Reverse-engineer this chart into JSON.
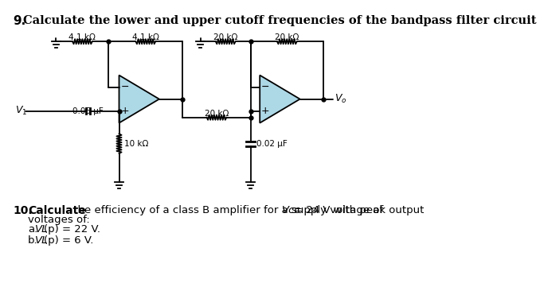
{
  "bg_color": "#ffffff",
  "op_amp_color": "#add8e6",
  "title": "9.  Calculate the lower and upper cutoff frequencies of the bandpass filter circuit",
  "s1_r1_label": "4.1 kΩ",
  "s1_r2_label": "4.1 kΩ",
  "s2_r3_label": "20 kΩ",
  "s2_r4_label": "20 kΩ",
  "r_mid_label": "20 kΩ",
  "s1_cap_label": "0.05 μF",
  "s1_res_label": "10 kΩ",
  "s2_cap_label": "0.02 μF",
  "vo_label": "Vₒ",
  "v1_label": "V₁",
  "p10_num": "10.",
  "p10_bold": "Calculate",
  "p10_rest": " the efficiency of a class B amplifier for a supply voltage of ",
  "p10_italic": "Vcc",
  "p10_end": "= 24 V with peak output",
  "p10_line2": "voltages of:",
  "p10_a": "a. ",
  "p10_a_italic": "VL",
  "p10_a_end": "(p) = 22 V.",
  "p10_b": "b. ",
  "p10_b_italic": "VL",
  "p10_b_end": "(p) = 6 V."
}
